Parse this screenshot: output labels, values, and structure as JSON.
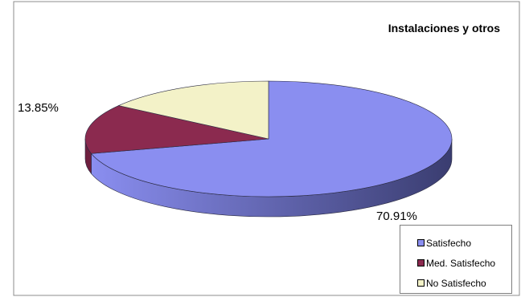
{
  "chart_data": {
    "type": "pie",
    "title": "Instalaciones y otros",
    "three_d": true,
    "categories": [
      "Satisfecho",
      "Med. Satisfecho",
      "No Satisfecho"
    ],
    "values": [
      70.91,
      13.85,
      15.24
    ],
    "data_labels": [
      "70.91%",
      "13.85%",
      ""
    ],
    "colors": [
      "#8a8ef0",
      "#8b2a4f",
      "#f3f2c8"
    ],
    "side_colors": [
      "#5c5fbd",
      "#6e1f3e",
      "#c9c79a"
    ],
    "legend_position": "bottom-right"
  }
}
